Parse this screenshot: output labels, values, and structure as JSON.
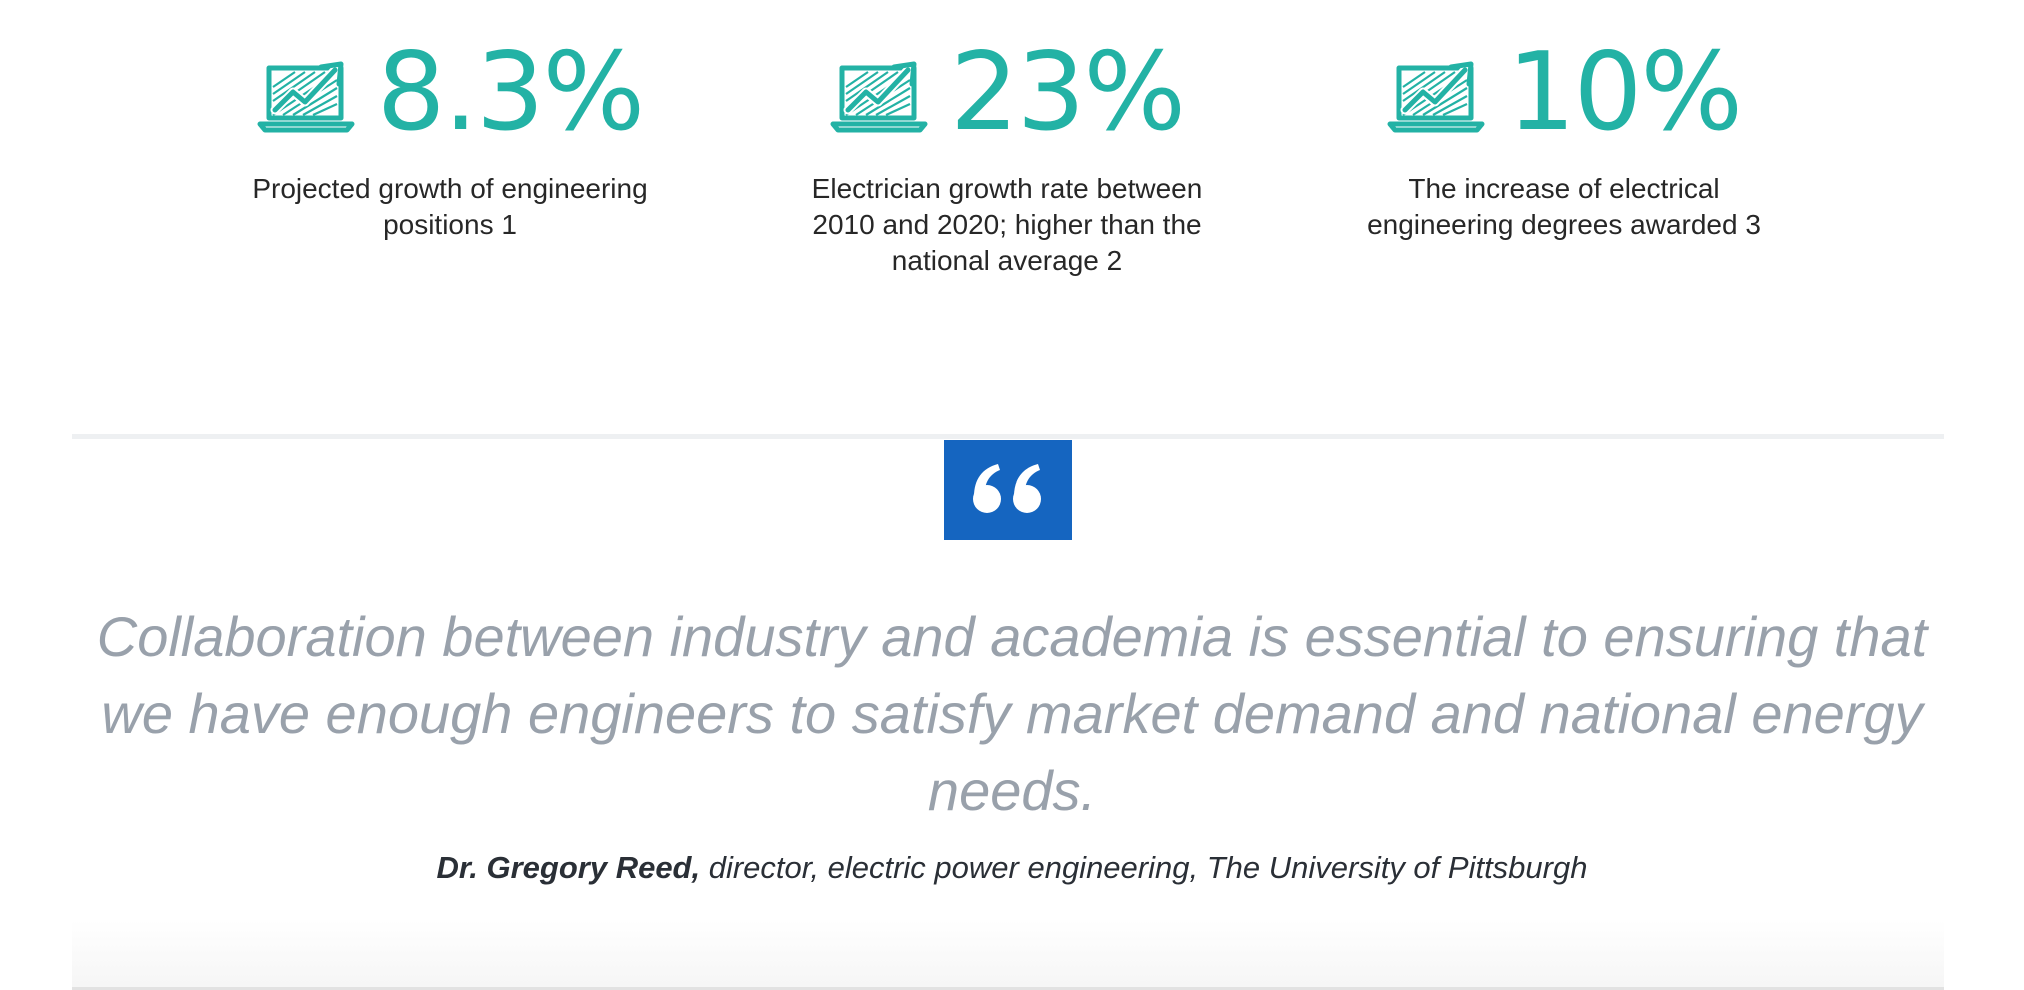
{
  "colors": {
    "accent_teal": "#23b2a5",
    "quote_box_blue": "#1565c0",
    "quote_text_gray": "#99a1ab",
    "caption_dark": "#272727"
  },
  "stats": [
    {
      "icon": "laptop-growth-chart-icon",
      "value": "8.3%",
      "caption": "Projected growth of engineering positions 1"
    },
    {
      "icon": "laptop-growth-chart-icon",
      "value": "23%",
      "caption": "Electrician growth rate between 2010 and 2020; higher than the national average 2"
    },
    {
      "icon": "laptop-growth-chart-icon",
      "value": "10%",
      "caption": "The increase of electrical engineering degrees awarded 3"
    }
  ],
  "quote": {
    "mark_icon": "quotation-mark-icon",
    "text": "Collaboration between industry and academia is essential to ensuring that we have enough engineers to satisfy market demand and national energy needs.",
    "author_name": "Dr. Gregory Reed,",
    "author_title": " director, electric power engineering, The University of Pittsburgh"
  }
}
